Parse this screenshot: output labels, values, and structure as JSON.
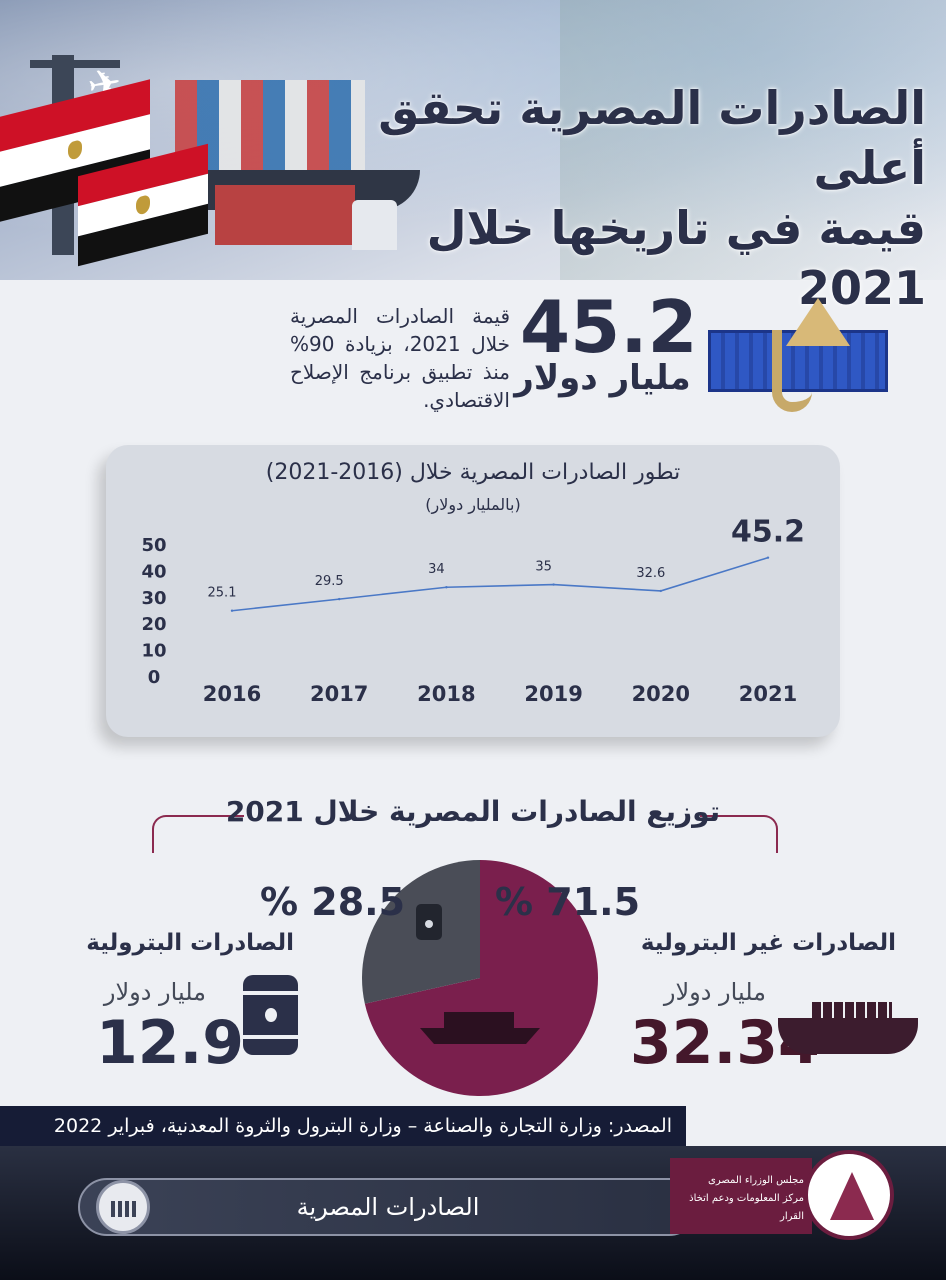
{
  "header": {
    "title_line1": "الصادرات المصرية تحقق أعلى",
    "title_line2": "قيمة في تاريخها خلال 2021"
  },
  "headline": {
    "description": "قيمة الصادرات المصرية خلال 2021، بزيادة 90% منذ تطبيق برنامج الإصلاح الاقتصادي.",
    "value": "45.2",
    "unit": "مليار دولار"
  },
  "chart_data": [
    {
      "type": "line",
      "title": "تطور الصادرات المصرية خلال (2016-2021)",
      "subtitle": "(بالمليار دولار)",
      "x": [
        "2016",
        "2017",
        "2018",
        "2019",
        "2020",
        "2021"
      ],
      "series": [
        {
          "values": [
            25.1,
            29.5,
            34,
            35,
            32.6,
            45.2
          ]
        }
      ],
      "data_labels": [
        "25.1",
        "29.5",
        "34",
        "35",
        "32.6",
        "45.2"
      ],
      "yticks": [
        "50",
        "40",
        "30",
        "20",
        "10",
        "0"
      ],
      "ylim": [
        0,
        50
      ],
      "grid": false,
      "color": "#4a78c6"
    },
    {
      "type": "pie",
      "title": "توزيع الصادرات المصرية خلال 2021",
      "slices": [
        {
          "label": "الصادرات غير البترولية",
          "percent": 71.5,
          "value": 32.34,
          "color": "#7a1f4d"
        },
        {
          "label": "الصادرات البترولية",
          "percent": 28.5,
          "value": 12.9,
          "color": "#4a4d57"
        }
      ]
    }
  ],
  "distribution": {
    "title": "توزيع الصادرات المصرية خلال 2021",
    "petroleum": {
      "percent": "% 28.5",
      "label": "الصادرات البترولية",
      "unit": "مليار دولار",
      "value": "12.9",
      "icon": "oil-barrel-icon"
    },
    "non_petroleum": {
      "percent": "% 71.5",
      "label": "الصادرات غير البترولية",
      "unit": "مليار دولار",
      "value": "32.34",
      "icon": "cargo-ship-icon"
    }
  },
  "source": "المصدر: وزارة التجارة والصناعة – وزارة البترول والثروة المعدنية، فبراير 2022",
  "footer": {
    "topic": "الصادرات المصرية",
    "logo_line1": "مجلس الوزراء المصرى",
    "logo_line2": "مركز المعلومات ودعم اتخاذ القرار"
  },
  "colors": {
    "navy": "#2b3049",
    "maroon": "#7a1f4d",
    "gray_slice": "#4a4d57",
    "line": "#4a78c6",
    "footer_bg": "#161c36"
  }
}
